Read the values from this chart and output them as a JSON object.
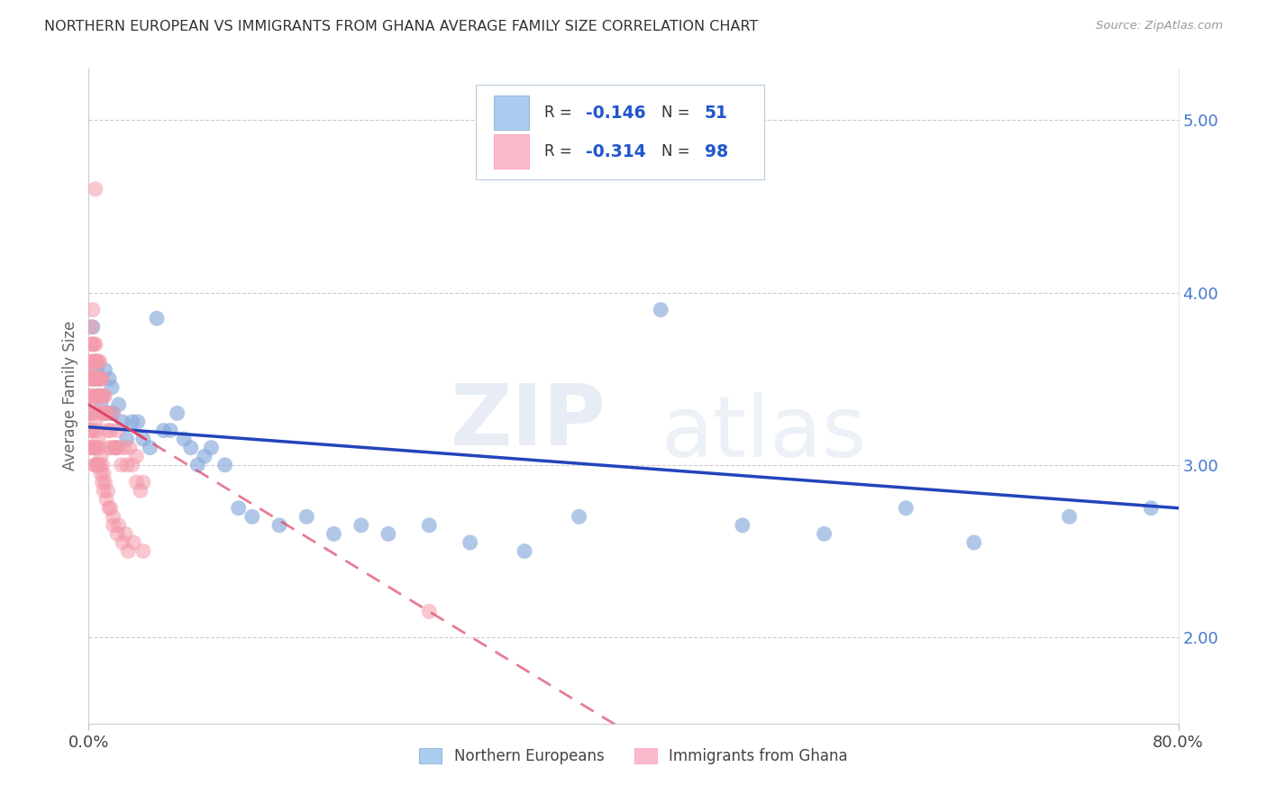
{
  "title": "NORTHERN EUROPEAN VS IMMIGRANTS FROM GHANA AVERAGE FAMILY SIZE CORRELATION CHART",
  "source": "Source: ZipAtlas.com",
  "ylabel": "Average Family Size",
  "right_yticks": [
    2.0,
    3.0,
    4.0,
    5.0
  ],
  "watermark_zip": "ZIP",
  "watermark_atlas": "atlas",
  "legend_label1": "Northern Europeans",
  "legend_label2": "Immigrants from Ghana",
  "blue_scatter_color": "#88AADD",
  "pink_scatter_color": "#F499AA",
  "blue_fill": "#AACCEE",
  "pink_fill": "#F9BBCC",
  "trend_blue": "#2244BB",
  "trend_pink": "#DD4466",
  "grid_color": "#CCCCCC",
  "blue_x": [
    0.002,
    0.003,
    0.004,
    0.005,
    0.006,
    0.007,
    0.008,
    0.009,
    0.01,
    0.012,
    0.013,
    0.015,
    0.016,
    0.017,
    0.018,
    0.02,
    0.022,
    0.025,
    0.028,
    0.032,
    0.036,
    0.04,
    0.045,
    0.05,
    0.055,
    0.06,
    0.065,
    0.07,
    0.075,
    0.08,
    0.085,
    0.09,
    0.1,
    0.11,
    0.12,
    0.14,
    0.16,
    0.18,
    0.2,
    0.22,
    0.25,
    0.28,
    0.32,
    0.36,
    0.42,
    0.48,
    0.54,
    0.6,
    0.65,
    0.72,
    0.78
  ],
  "blue_y": [
    3.3,
    3.8,
    3.5,
    3.6,
    3.55,
    3.4,
    3.5,
    3.35,
    3.4,
    3.55,
    3.3,
    3.5,
    3.3,
    3.45,
    3.3,
    3.1,
    3.35,
    3.25,
    3.15,
    3.25,
    3.25,
    3.15,
    3.1,
    3.85,
    3.2,
    3.2,
    3.3,
    3.15,
    3.1,
    3.0,
    3.05,
    3.1,
    3.0,
    2.75,
    2.7,
    2.65,
    2.7,
    2.6,
    2.65,
    2.6,
    2.65,
    2.55,
    2.5,
    2.7,
    3.9,
    2.65,
    2.6,
    2.75,
    2.55,
    2.7,
    2.75
  ],
  "pink_x": [
    0.001,
    0.001,
    0.001,
    0.001,
    0.002,
    0.002,
    0.002,
    0.002,
    0.003,
    0.003,
    0.003,
    0.003,
    0.004,
    0.004,
    0.004,
    0.005,
    0.005,
    0.005,
    0.005,
    0.006,
    0.006,
    0.006,
    0.007,
    0.007,
    0.007,
    0.008,
    0.008,
    0.008,
    0.009,
    0.009,
    0.01,
    0.01,
    0.011,
    0.011,
    0.012,
    0.012,
    0.013,
    0.014,
    0.015,
    0.016,
    0.017,
    0.018,
    0.019,
    0.02,
    0.021,
    0.022,
    0.024,
    0.026,
    0.028,
    0.03,
    0.032,
    0.035,
    0.038,
    0.04,
    0.001,
    0.002,
    0.003,
    0.004,
    0.005,
    0.006,
    0.007,
    0.008,
    0.009,
    0.01,
    0.011,
    0.012,
    0.014,
    0.016,
    0.018,
    0.021,
    0.025,
    0.029,
    0.001,
    0.001,
    0.002,
    0.002,
    0.003,
    0.003,
    0.004,
    0.004,
    0.005,
    0.005,
    0.006,
    0.006,
    0.007,
    0.008,
    0.009,
    0.01,
    0.011,
    0.013,
    0.015,
    0.018,
    0.022,
    0.027,
    0.033,
    0.04,
    0.005,
    0.035,
    0.25
  ],
  "pink_y": [
    3.3,
    3.4,
    3.5,
    3.6,
    3.5,
    3.55,
    3.7,
    3.8,
    3.6,
    3.5,
    3.7,
    3.9,
    3.5,
    3.6,
    3.7,
    3.4,
    3.5,
    3.6,
    3.7,
    3.4,
    3.5,
    3.6,
    3.4,
    3.5,
    3.6,
    3.4,
    3.5,
    3.6,
    3.3,
    3.5,
    3.4,
    3.5,
    3.3,
    3.4,
    3.3,
    3.4,
    3.3,
    3.2,
    3.1,
    3.2,
    3.1,
    3.3,
    3.1,
    3.1,
    3.2,
    3.1,
    3.0,
    3.1,
    3.0,
    3.1,
    3.0,
    2.9,
    2.85,
    2.9,
    3.4,
    3.4,
    3.35,
    3.3,
    3.25,
    3.2,
    3.15,
    3.1,
    3.05,
    3.0,
    2.95,
    2.9,
    2.85,
    2.75,
    2.65,
    2.6,
    2.55,
    2.5,
    3.2,
    3.1,
    3.2,
    3.1,
    3.1,
    3.2,
    3.0,
    3.1,
    3.0,
    3.1,
    3.0,
    3.1,
    3.0,
    3.0,
    2.95,
    2.9,
    2.85,
    2.8,
    2.75,
    2.7,
    2.65,
    2.6,
    2.55,
    2.5,
    4.6,
    3.05,
    2.15
  ]
}
